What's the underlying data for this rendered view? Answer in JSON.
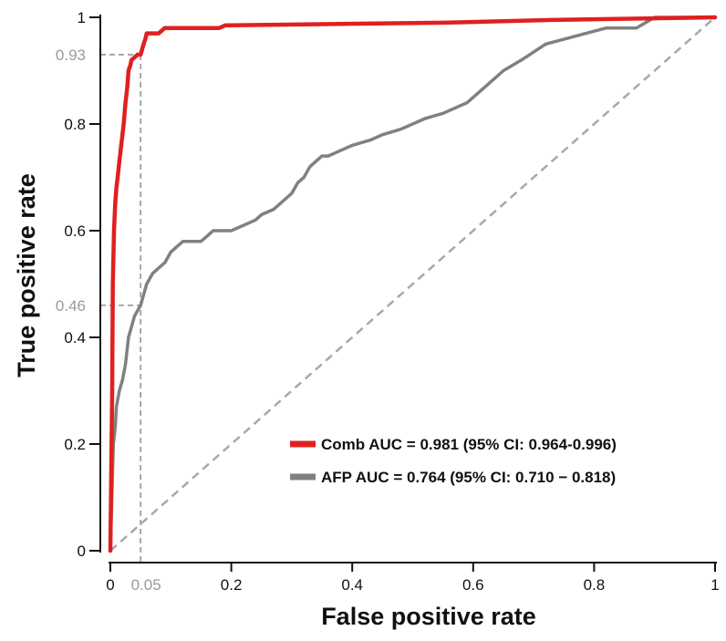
{
  "chart_data": {
    "type": "line",
    "title": "",
    "xlabel": "False positive rate",
    "ylabel": "True positive rate",
    "xlim": [
      0,
      1
    ],
    "ylim": [
      0,
      1
    ],
    "xticks": [
      0,
      0.2,
      0.4,
      0.6,
      0.8,
      1
    ],
    "yticks": [
      0,
      0.2,
      0.4,
      0.6,
      0.8,
      1
    ],
    "xtick_labels": [
      "0",
      "0.2",
      "0.4",
      "0.6",
      "0.8",
      "1"
    ],
    "ytick_labels": [
      "0",
      "0.2",
      "0.4",
      "0.6",
      "0.8",
      "1"
    ],
    "grid": false,
    "legend_position": "bottom-right",
    "reference_lines": {
      "x": 0.05,
      "x_label": "0.05",
      "y_comb": 0.93,
      "y_comb_label": "0.93",
      "y_afp": 0.46,
      "y_afp_label": "0.46",
      "color": "#a0a0a0"
    },
    "diagonal": {
      "color": "#a8a8a8"
    },
    "series": [
      {
        "name": "Comb",
        "legend": "Comb AUC = 0.981 (95% CI: 0.964-0.996)",
        "color": "#e02020",
        "x": [
          0,
          0.003,
          0.004,
          0.006,
          0.008,
          0.01,
          0.012,
          0.015,
          0.018,
          0.022,
          0.025,
          0.028,
          0.03,
          0.033,
          0.035,
          0.04,
          0.045,
          0.05,
          0.055,
          0.058,
          0.06,
          0.08,
          0.09,
          0.18,
          0.19,
          0.55,
          0.73,
          1
        ],
        "y": [
          0,
          0.3,
          0.5,
          0.6,
          0.65,
          0.68,
          0.7,
          0.73,
          0.76,
          0.8,
          0.84,
          0.87,
          0.9,
          0.91,
          0.92,
          0.925,
          0.93,
          0.93,
          0.95,
          0.96,
          0.97,
          0.97,
          0.98,
          0.98,
          0.985,
          0.99,
          0.995,
          1
        ]
      },
      {
        "name": "AFP",
        "legend": "AFP AUC = 0.764 (95% CI: 0.710 − 0.818)",
        "color": "#808080",
        "x": [
          0,
          0.005,
          0.008,
          0.01,
          0.015,
          0.02,
          0.025,
          0.03,
          0.035,
          0.04,
          0.045,
          0.05,
          0.055,
          0.06,
          0.065,
          0.07,
          0.08,
          0.09,
          0.1,
          0.11,
          0.12,
          0.15,
          0.16,
          0.17,
          0.2,
          0.22,
          0.24,
          0.25,
          0.27,
          0.28,
          0.3,
          0.31,
          0.32,
          0.33,
          0.35,
          0.36,
          0.38,
          0.4,
          0.43,
          0.45,
          0.48,
          0.52,
          0.55,
          0.59,
          0.62,
          0.65,
          0.68,
          0.72,
          0.82,
          0.87,
          0.9,
          1
        ],
        "y": [
          0,
          0.2,
          0.23,
          0.27,
          0.3,
          0.32,
          0.35,
          0.4,
          0.42,
          0.44,
          0.45,
          0.46,
          0.48,
          0.5,
          0.51,
          0.52,
          0.53,
          0.54,
          0.56,
          0.57,
          0.58,
          0.58,
          0.59,
          0.6,
          0.6,
          0.61,
          0.62,
          0.63,
          0.64,
          0.65,
          0.67,
          0.69,
          0.7,
          0.72,
          0.74,
          0.74,
          0.75,
          0.76,
          0.77,
          0.78,
          0.79,
          0.81,
          0.82,
          0.84,
          0.87,
          0.9,
          0.92,
          0.95,
          0.98,
          0.98,
          1,
          1
        ]
      }
    ]
  }
}
